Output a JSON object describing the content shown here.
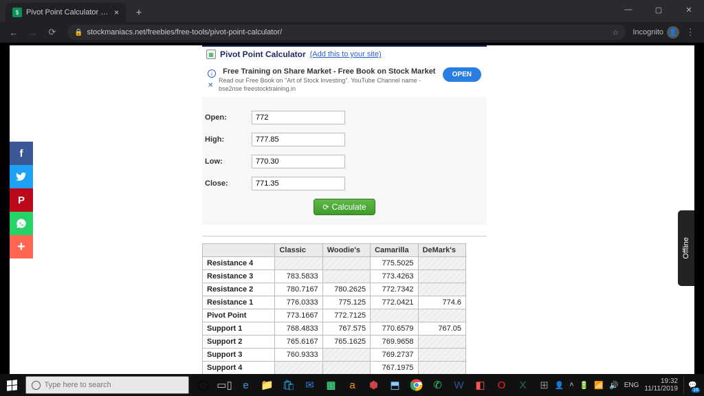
{
  "browser": {
    "tab_title": "Pivot Point Calculator | StockMan",
    "url": "stockmaniacs.net/freebies/free-tools/pivot-point-calculator/",
    "incognito_label": "Incognito",
    "new_tab": "+"
  },
  "header": {
    "title": "Pivot Point Calculator",
    "add_link": "(Add this to your site)"
  },
  "promo": {
    "headline": "Free Training on Share Market - Free Book on Stock Market",
    "sub": "Read our Free Book on \"Art of Stock Investing\". YouTube Channel name - bse2nse freestocktraining.in",
    "open": "OPEN"
  },
  "form": {
    "open_label": "Open:",
    "high_label": "High:",
    "low_label": "Low:",
    "close_label": "Close:",
    "open_value": "772",
    "high_value": "777.85",
    "low_value": "770.30",
    "close_value": "771.35",
    "calculate": "Calculate"
  },
  "results": {
    "columns": [
      "Classic",
      "Woodie's",
      "Camarilla",
      "DeMark's"
    ],
    "rows": [
      {
        "label": "Resistance 4",
        "vals": [
          "",
          "",
          "775.5025",
          ""
        ]
      },
      {
        "label": "Resistance 3",
        "vals": [
          "783.5833",
          "",
          "773.4263",
          ""
        ]
      },
      {
        "label": "Resistance 2",
        "vals": [
          "780.7167",
          "780.2625",
          "772.7342",
          ""
        ]
      },
      {
        "label": "Resistance 1",
        "vals": [
          "776.0333",
          "775.125",
          "772.0421",
          "774.6"
        ]
      },
      {
        "label": "Pivot Point",
        "vals": [
          "773.1667",
          "772.7125",
          "",
          ""
        ]
      },
      {
        "label": "Support 1",
        "vals": [
          "768.4833",
          "767.575",
          "770.6579",
          "767.05"
        ]
      },
      {
        "label": "Support 2",
        "vals": [
          "765.6167",
          "765.1625",
          "769.9658",
          ""
        ]
      },
      {
        "label": "Support 3",
        "vals": [
          "760.9333",
          "",
          "769.2737",
          ""
        ]
      },
      {
        "label": "Support 4",
        "vals": [
          "",
          "",
          "767.1975",
          ""
        ]
      }
    ]
  },
  "offline": {
    "label": "Offline"
  },
  "taskbar": {
    "search_placeholder": "Type here to search",
    "lang": "ENG",
    "time": "19:32",
    "date": "11/11/2019",
    "notif_count": "16"
  }
}
